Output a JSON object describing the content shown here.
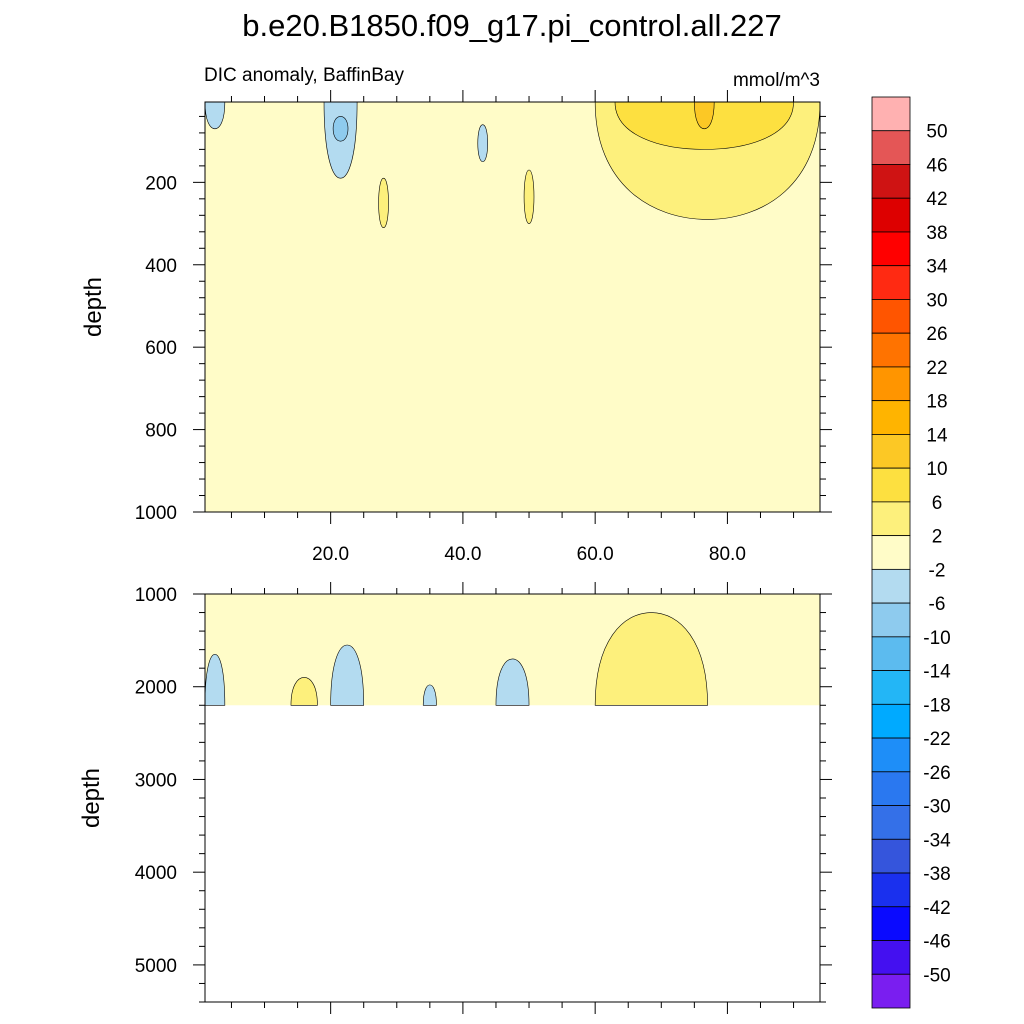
{
  "title": "b.e20.B1850.f09_g17.pi_control.all.227",
  "subtitle_left": "DIC anomaly, BaffinBay",
  "subtitle_right": "mmol/m^3",
  "chart_data": [
    {
      "type": "heatmap",
      "panel": "upper",
      "ylabel": "depth",
      "xlim": [
        1,
        94
      ],
      "ylim": [
        1000,
        5
      ],
      "y_reversed": true,
      "x_ticks": [
        "20.0",
        "40.0",
        "60.0",
        "80.0"
      ],
      "y_ticks": [
        "200",
        "400",
        "600",
        "800",
        "1000"
      ],
      "background_level": "-2 to 2",
      "features": [
        {
          "level": "2 to 6",
          "x_range": [
            60,
            94
          ],
          "depth_range": [
            5,
            290
          ]
        },
        {
          "level": "6 to 10",
          "x_range": [
            63,
            90
          ],
          "depth_range": [
            5,
            120
          ]
        },
        {
          "level": "10 to 14",
          "x_range": [
            75,
            78
          ],
          "depth_range": [
            5,
            70
          ]
        },
        {
          "level": "2 to 6",
          "x_range": [
            27,
            29
          ],
          "depth_range": [
            190,
            310
          ]
        },
        {
          "level": "2 to 6",
          "x_range": [
            49,
            51
          ],
          "depth_range": [
            170,
            300
          ]
        },
        {
          "level": "-6 to -2",
          "x_range": [
            19,
            24
          ],
          "depth_range": [
            5,
            190
          ]
        },
        {
          "level": "-10 to -6",
          "x_range": [
            20,
            23
          ],
          "depth_range": [
            40,
            100
          ]
        },
        {
          "level": "-6 to -2",
          "x_range": [
            42,
            44
          ],
          "depth_range": [
            60,
            150
          ]
        },
        {
          "level": "-6 to -2",
          "x_range": [
            1,
            4
          ],
          "depth_range": [
            5,
            70
          ]
        }
      ]
    },
    {
      "type": "heatmap",
      "panel": "lower",
      "ylabel": "depth",
      "xlim": [
        1,
        94
      ],
      "ylim": [
        5400,
        1000
      ],
      "y_reversed": true,
      "y_ticks": [
        "1000",
        "2000",
        "3000",
        "4000",
        "5000"
      ],
      "data_bottom_depth": 2200,
      "background_level": "-2 to 2",
      "features": [
        {
          "level": "2 to 6",
          "x_range": [
            60,
            77
          ],
          "depth_range": [
            1200,
            2200
          ]
        },
        {
          "level": "2 to 6",
          "x_range": [
            14,
            18
          ],
          "depth_range": [
            1900,
            2200
          ]
        },
        {
          "level": "-6 to -2",
          "x_range": [
            1,
            4
          ],
          "depth_range": [
            1650,
            2200
          ]
        },
        {
          "level": "-6 to -2",
          "x_range": [
            20,
            25
          ],
          "depth_range": [
            1550,
            2200
          ]
        },
        {
          "level": "-6 to -2",
          "x_range": [
            34,
            36
          ],
          "depth_range": [
            1980,
            2200
          ]
        },
        {
          "level": "-6 to -2",
          "x_range": [
            45,
            50
          ],
          "depth_range": [
            1700,
            2200
          ]
        }
      ]
    }
  ],
  "colorbar": {
    "labels": [
      "50",
      "46",
      "42",
      "38",
      "34",
      "30",
      "26",
      "22",
      "18",
      "14",
      "10",
      "6",
      "2",
      "-2",
      "-6",
      "-10",
      "-14",
      "-18",
      "-22",
      "-26",
      "-30",
      "-34",
      "-38",
      "-42",
      "-46",
      "-50"
    ],
    "colors": [
      "#ffb1b1",
      "#e45656",
      "#cf1313",
      "#dd0000",
      "#ff0000",
      "#ff2a12",
      "#ff5500",
      "#ff7300",
      "#ff9500",
      "#ffb400",
      "#fcc825",
      "#fde040",
      "#fdf07c",
      "#fffcc8",
      "#b3dbf0",
      "#8ecbee",
      "#5cbbef",
      "#23b6f6",
      "#00aaff",
      "#1e8ef8",
      "#2a78f0",
      "#3470e8",
      "#3555dc",
      "#1a30ee",
      "#0a0aff",
      "#4410f0",
      "#7a1ef0"
    ]
  }
}
